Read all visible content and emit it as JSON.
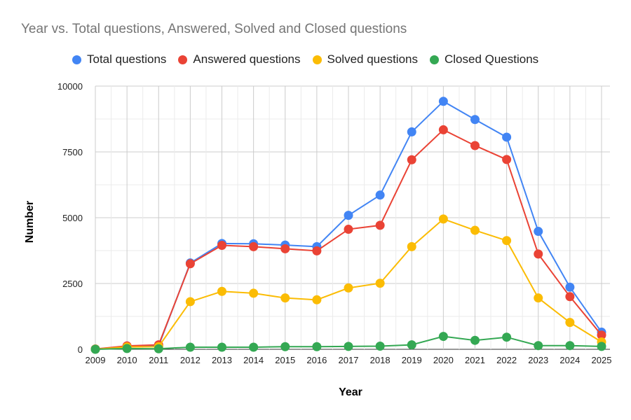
{
  "chart_data": {
    "type": "line",
    "title": "Year vs. Total questions, Answered, Solved and Closed questions",
    "xlabel": "Year",
    "ylabel": "Number",
    "ylim": [
      0,
      10000
    ],
    "yticks": [
      "0",
      "2500",
      "5000",
      "7500",
      "10000"
    ],
    "grid": true,
    "legend_position": "top",
    "categories": [
      "2009",
      "2010",
      "2011",
      "2012",
      "2013",
      "2014",
      "2015",
      "2016",
      "2017",
      "2018",
      "2019",
      "2020",
      "2021",
      "2022",
      "2023",
      "2024",
      "2025"
    ],
    "series": [
      {
        "name": "Total questions",
        "color": "#4285f4",
        "values": [
          10,
          110,
          130,
          3280,
          4020,
          4010,
          3960,
          3900,
          5090,
          5860,
          8260,
          9420,
          8730,
          8060,
          4480,
          2360,
          650
        ]
      },
      {
        "name": "Answered questions",
        "color": "#ea4335",
        "values": [
          10,
          130,
          170,
          3250,
          3950,
          3900,
          3820,
          3740,
          4560,
          4710,
          7200,
          8340,
          7740,
          7210,
          3620,
          2000,
          540
        ]
      },
      {
        "name": "Solved questions",
        "color": "#fbbc04",
        "values": [
          5,
          90,
          100,
          1810,
          2200,
          2130,
          1950,
          1880,
          2330,
          2510,
          3900,
          4950,
          4520,
          4130,
          1950,
          1020,
          280
        ]
      },
      {
        "name": "Closed Questions",
        "color": "#34a853",
        "values": [
          0,
          30,
          20,
          80,
          80,
          80,
          100,
          100,
          110,
          120,
          170,
          490,
          340,
          460,
          140,
          140,
          110
        ]
      }
    ]
  }
}
